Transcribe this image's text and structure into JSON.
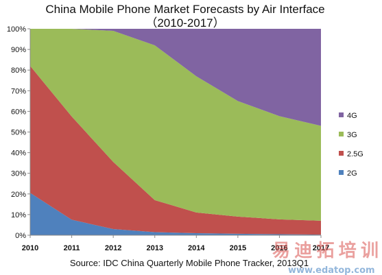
{
  "chart_data": {
    "type": "area",
    "stacked": true,
    "percent": true,
    "title": "China Mobile Phone Market Forecasts by Air Interface",
    "subtitle": "（2010-2017）",
    "source": "Source: IDC China Quarterly Mobile Phone Tracker, 2013Q1",
    "x": [
      "2010",
      "2011",
      "2012",
      "2013",
      "2014",
      "2015",
      "2016",
      "2017"
    ],
    "ylim": [
      0,
      100
    ],
    "yticks": [
      "0%",
      "10%",
      "20%",
      "30%",
      "40%",
      "50%",
      "60%",
      "70%",
      "80%",
      "90%",
      "100%"
    ],
    "legend_position": "right",
    "series": [
      {
        "name": "2G",
        "color": "#4f81bd",
        "values": [
          20.5,
          7.5,
          3,
          1.5,
          1,
          0.7,
          0.5,
          0.3
        ]
      },
      {
        "name": "2.5G",
        "color": "#c0504d",
        "values": [
          61.5,
          50,
          32.5,
          15.5,
          10,
          8.3,
          7.2,
          6.7
        ]
      },
      {
        "name": "3G",
        "color": "#9bbb59",
        "values": [
          18,
          42.5,
          63.5,
          75,
          66,
          56,
          50,
          46
        ]
      },
      {
        "name": "4G",
        "color": "#8064a2",
        "values": [
          0,
          0,
          1,
          8,
          23,
          35,
          42.3,
          47
        ]
      }
    ]
  },
  "watermark": {
    "text": "易迪拓培训",
    "url": "www.edatop.com"
  }
}
